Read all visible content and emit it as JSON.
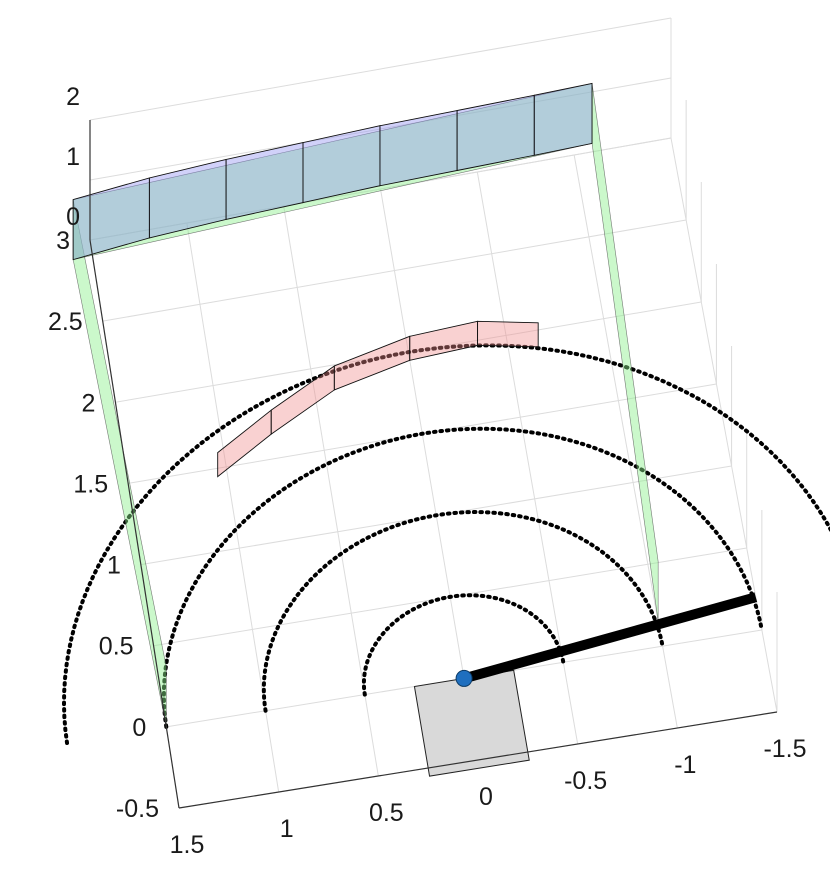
{
  "chart_data": {
    "type": "3d-scene",
    "title": "",
    "xlabel": "",
    "ylabel": "",
    "zlabel": "",
    "grid": true,
    "x_ticks": [
      "1.5",
      "1",
      "0.5",
      "0",
      "-0.5",
      "-1",
      "-1.5"
    ],
    "y_ticks": [
      "-0.5",
      "0",
      "0.5",
      "1",
      "1.5",
      "2",
      "2.5",
      "3"
    ],
    "z_ticks": [
      "0",
      "1",
      "2"
    ],
    "xlim": [
      -1.5,
      1.5
    ],
    "ylim": [
      -0.5,
      3
    ],
    "zlim": [
      0,
      2
    ],
    "colors": {
      "outer_walls": "#8c8cf0",
      "inner_walls": "#f08c8c",
      "boundary_planes": "#8cf08c",
      "table": "#d9d9d9",
      "robot_link": "#000000",
      "robot_base": "#1f6fbf",
      "reach_circles": "#000000"
    },
    "reach_circles_radius": [
      0.5,
      1.0,
      1.5,
      2.0
    ],
    "robot": {
      "base": [
        0,
        0
      ],
      "tip": [
        -1.5,
        0.2
      ]
    },
    "table": {
      "x": [
        -0.25,
        0.25
      ],
      "y": [
        -0.55,
        0
      ]
    },
    "boundary_planes": [
      {
        "x": [
          1.6,
          1.5
        ],
        "y": [
          2.9,
          0
        ]
      },
      {
        "x": [
          -1.1,
          -1.0
        ],
        "y": [
          3.05,
          0.15
        ]
      },
      {
        "x": [
          1.6,
          -1.1
        ],
        "y": [
          2.9,
          3.05
        ]
      }
    ],
    "outer_wall_arc": {
      "points": [
        [
          1.6,
          2.9
        ],
        [
          1.2,
          2.95
        ],
        [
          0.8,
          2.98
        ],
        [
          0.4,
          3.0
        ],
        [
          0.0,
          3.02
        ],
        [
          -0.4,
          3.03
        ],
        [
          -0.8,
          3.04
        ],
        [
          -1.1,
          3.05
        ]
      ],
      "height": [
        0,
        1.0
      ]
    },
    "inner_wall_arc": {
      "points": [
        [
          1.05,
          1.45
        ],
        [
          0.75,
          1.65
        ],
        [
          0.4,
          1.85
        ],
        [
          0.0,
          1.95
        ],
        [
          -0.35,
          1.97
        ],
        [
          -0.65,
          1.9
        ]
      ],
      "height": [
        0,
        0.4
      ]
    }
  }
}
